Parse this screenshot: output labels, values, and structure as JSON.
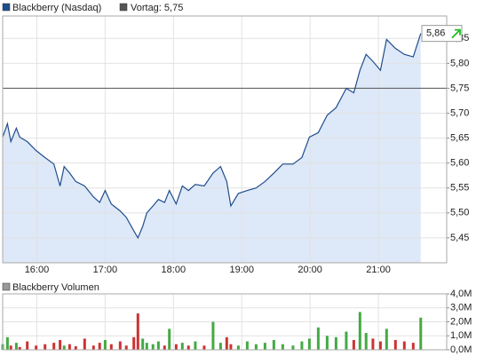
{
  "chart_data": {
    "type": "line",
    "legend": "Blackberry (Nasdaq)",
    "color": "#1f4e8c",
    "fill": "#dde8f8",
    "reference": {
      "name": "Vortag: 5,75",
      "value": 5.75,
      "color": "#555555"
    },
    "current": {
      "value": 5.86,
      "label": "5,86",
      "arrow_color": "#22bb22"
    },
    "x": [
      15.5,
      15.57,
      15.62,
      15.7,
      15.75,
      15.86,
      15.99,
      16.12,
      16.25,
      16.34,
      16.4,
      16.48,
      16.57,
      16.7,
      16.83,
      16.92,
      17.0,
      17.09,
      17.22,
      17.31,
      17.42,
      17.48,
      17.55,
      17.61,
      17.7,
      17.78,
      17.87,
      17.94,
      18.04,
      18.13,
      18.22,
      18.32,
      18.45,
      18.58,
      18.69,
      18.78,
      18.84,
      18.95,
      19.08,
      19.21,
      19.34,
      19.47,
      19.6,
      19.75,
      19.88,
      19.99,
      20.12,
      20.25,
      20.38,
      20.53,
      20.64,
      20.73,
      20.82,
      20.92,
      21.03,
      21.12,
      21.25,
      21.38,
      21.51,
      21.62
    ],
    "values": [
      5.652,
      5.679,
      5.643,
      5.67,
      5.652,
      5.643,
      5.625,
      5.611,
      5.598,
      5.554,
      5.593,
      5.58,
      5.563,
      5.554,
      5.532,
      5.521,
      5.545,
      5.518,
      5.504,
      5.491,
      5.464,
      5.45,
      5.473,
      5.5,
      5.514,
      5.527,
      5.521,
      5.545,
      5.518,
      5.554,
      5.545,
      5.557,
      5.554,
      5.58,
      5.593,
      5.563,
      5.514,
      5.539,
      5.545,
      5.55,
      5.563,
      5.58,
      5.598,
      5.598,
      5.611,
      5.652,
      5.661,
      5.696,
      5.711,
      5.75,
      5.741,
      5.786,
      5.818,
      5.804,
      5.786,
      5.848,
      5.83,
      5.818,
      5.813,
      5.86
    ],
    "xlim": [
      15.5,
      22
    ],
    "xticks": [
      {
        "value": 16,
        "label": "16:00"
      },
      {
        "value": 17,
        "label": "17:00"
      },
      {
        "value": 18,
        "label": "18:00"
      },
      {
        "value": 19,
        "label": "19:00"
      },
      {
        "value": 20,
        "label": "20:00"
      },
      {
        "value": 21,
        "label": "21:00"
      }
    ],
    "ylim": [
      5.4,
      5.895
    ],
    "yticks": [
      {
        "value": 5.45,
        "label": "5,45"
      },
      {
        "value": 5.5,
        "label": "5,50"
      },
      {
        "value": 5.55,
        "label": "5,55"
      },
      {
        "value": 5.6,
        "label": "5,60"
      },
      {
        "value": 5.65,
        "label": "5,65"
      },
      {
        "value": 5.7,
        "label": "5,70"
      },
      {
        "value": 5.75,
        "label": "5,75"
      },
      {
        "value": 5.8,
        "label": "5,80"
      },
      {
        "value": 5.85,
        "label": "5,85"
      }
    ],
    "grid": true,
    "volume": {
      "name": "Blackberry Volumen",
      "legend_color": "#999999",
      "values": [
        400000,
        900000,
        300000,
        500000,
        200000,
        600000,
        300000,
        400000,
        500000,
        700000,
        300000,
        400000,
        250000,
        800000,
        300000,
        500000,
        700000,
        400000,
        600000,
        300000,
        900000,
        2600000,
        800000,
        500000,
        400000,
        600000,
        300000,
        1500000,
        400000,
        500000,
        300000,
        600000,
        300000,
        2000000,
        500000,
        900000,
        400000,
        300000,
        600000,
        400000,
        500000,
        700000,
        400000,
        300000,
        600000,
        800000,
        1600000,
        1000000,
        900000,
        1300000,
        700000,
        2700000,
        1200000,
        800000,
        600000,
        1500000,
        700000,
        600000,
        500000,
        2300000
      ],
      "colors": [
        "#44aa44",
        "#44aa44",
        "#cc3333",
        "#44aa44",
        "#cc3333",
        "#cc3333",
        "#cc3333",
        "#cc3333",
        "#cc3333",
        "#cc3333",
        "#44aa44",
        "#cc3333",
        "#cc3333",
        "#cc3333",
        "#cc3333",
        "#cc3333",
        "#44aa44",
        "#cc3333",
        "#cc3333",
        "#cc3333",
        "#cc3333",
        "#cc3333",
        "#44aa44",
        "#44aa44",
        "#44aa44",
        "#44aa44",
        "#cc3333",
        "#44aa44",
        "#cc3333",
        "#44aa44",
        "#cc3333",
        "#44aa44",
        "#cc3333",
        "#44aa44",
        "#44aa44",
        "#cc3333",
        "#cc3333",
        "#44aa44",
        "#44aa44",
        "#44aa44",
        "#44aa44",
        "#44aa44",
        "#44aa44",
        "#44aa44",
        "#44aa44",
        "#44aa44",
        "#44aa44",
        "#44aa44",
        "#44aa44",
        "#44aa44",
        "#cc3333",
        "#44aa44",
        "#44aa44",
        "#cc3333",
        "#cc3333",
        "#44aa44",
        "#cc3333",
        "#cc3333",
        "#cc3333",
        "#44aa44"
      ],
      "ylim": [
        0,
        4000000
      ],
      "yticks": [
        {
          "value": 0,
          "label": "0,0M"
        },
        {
          "value": 1000000,
          "label": "1,0M"
        },
        {
          "value": 2000000,
          "label": "2,0M"
        },
        {
          "value": 3000000,
          "label": "3,0M"
        },
        {
          "value": 4000000,
          "label": "4,0M"
        }
      ]
    }
  }
}
